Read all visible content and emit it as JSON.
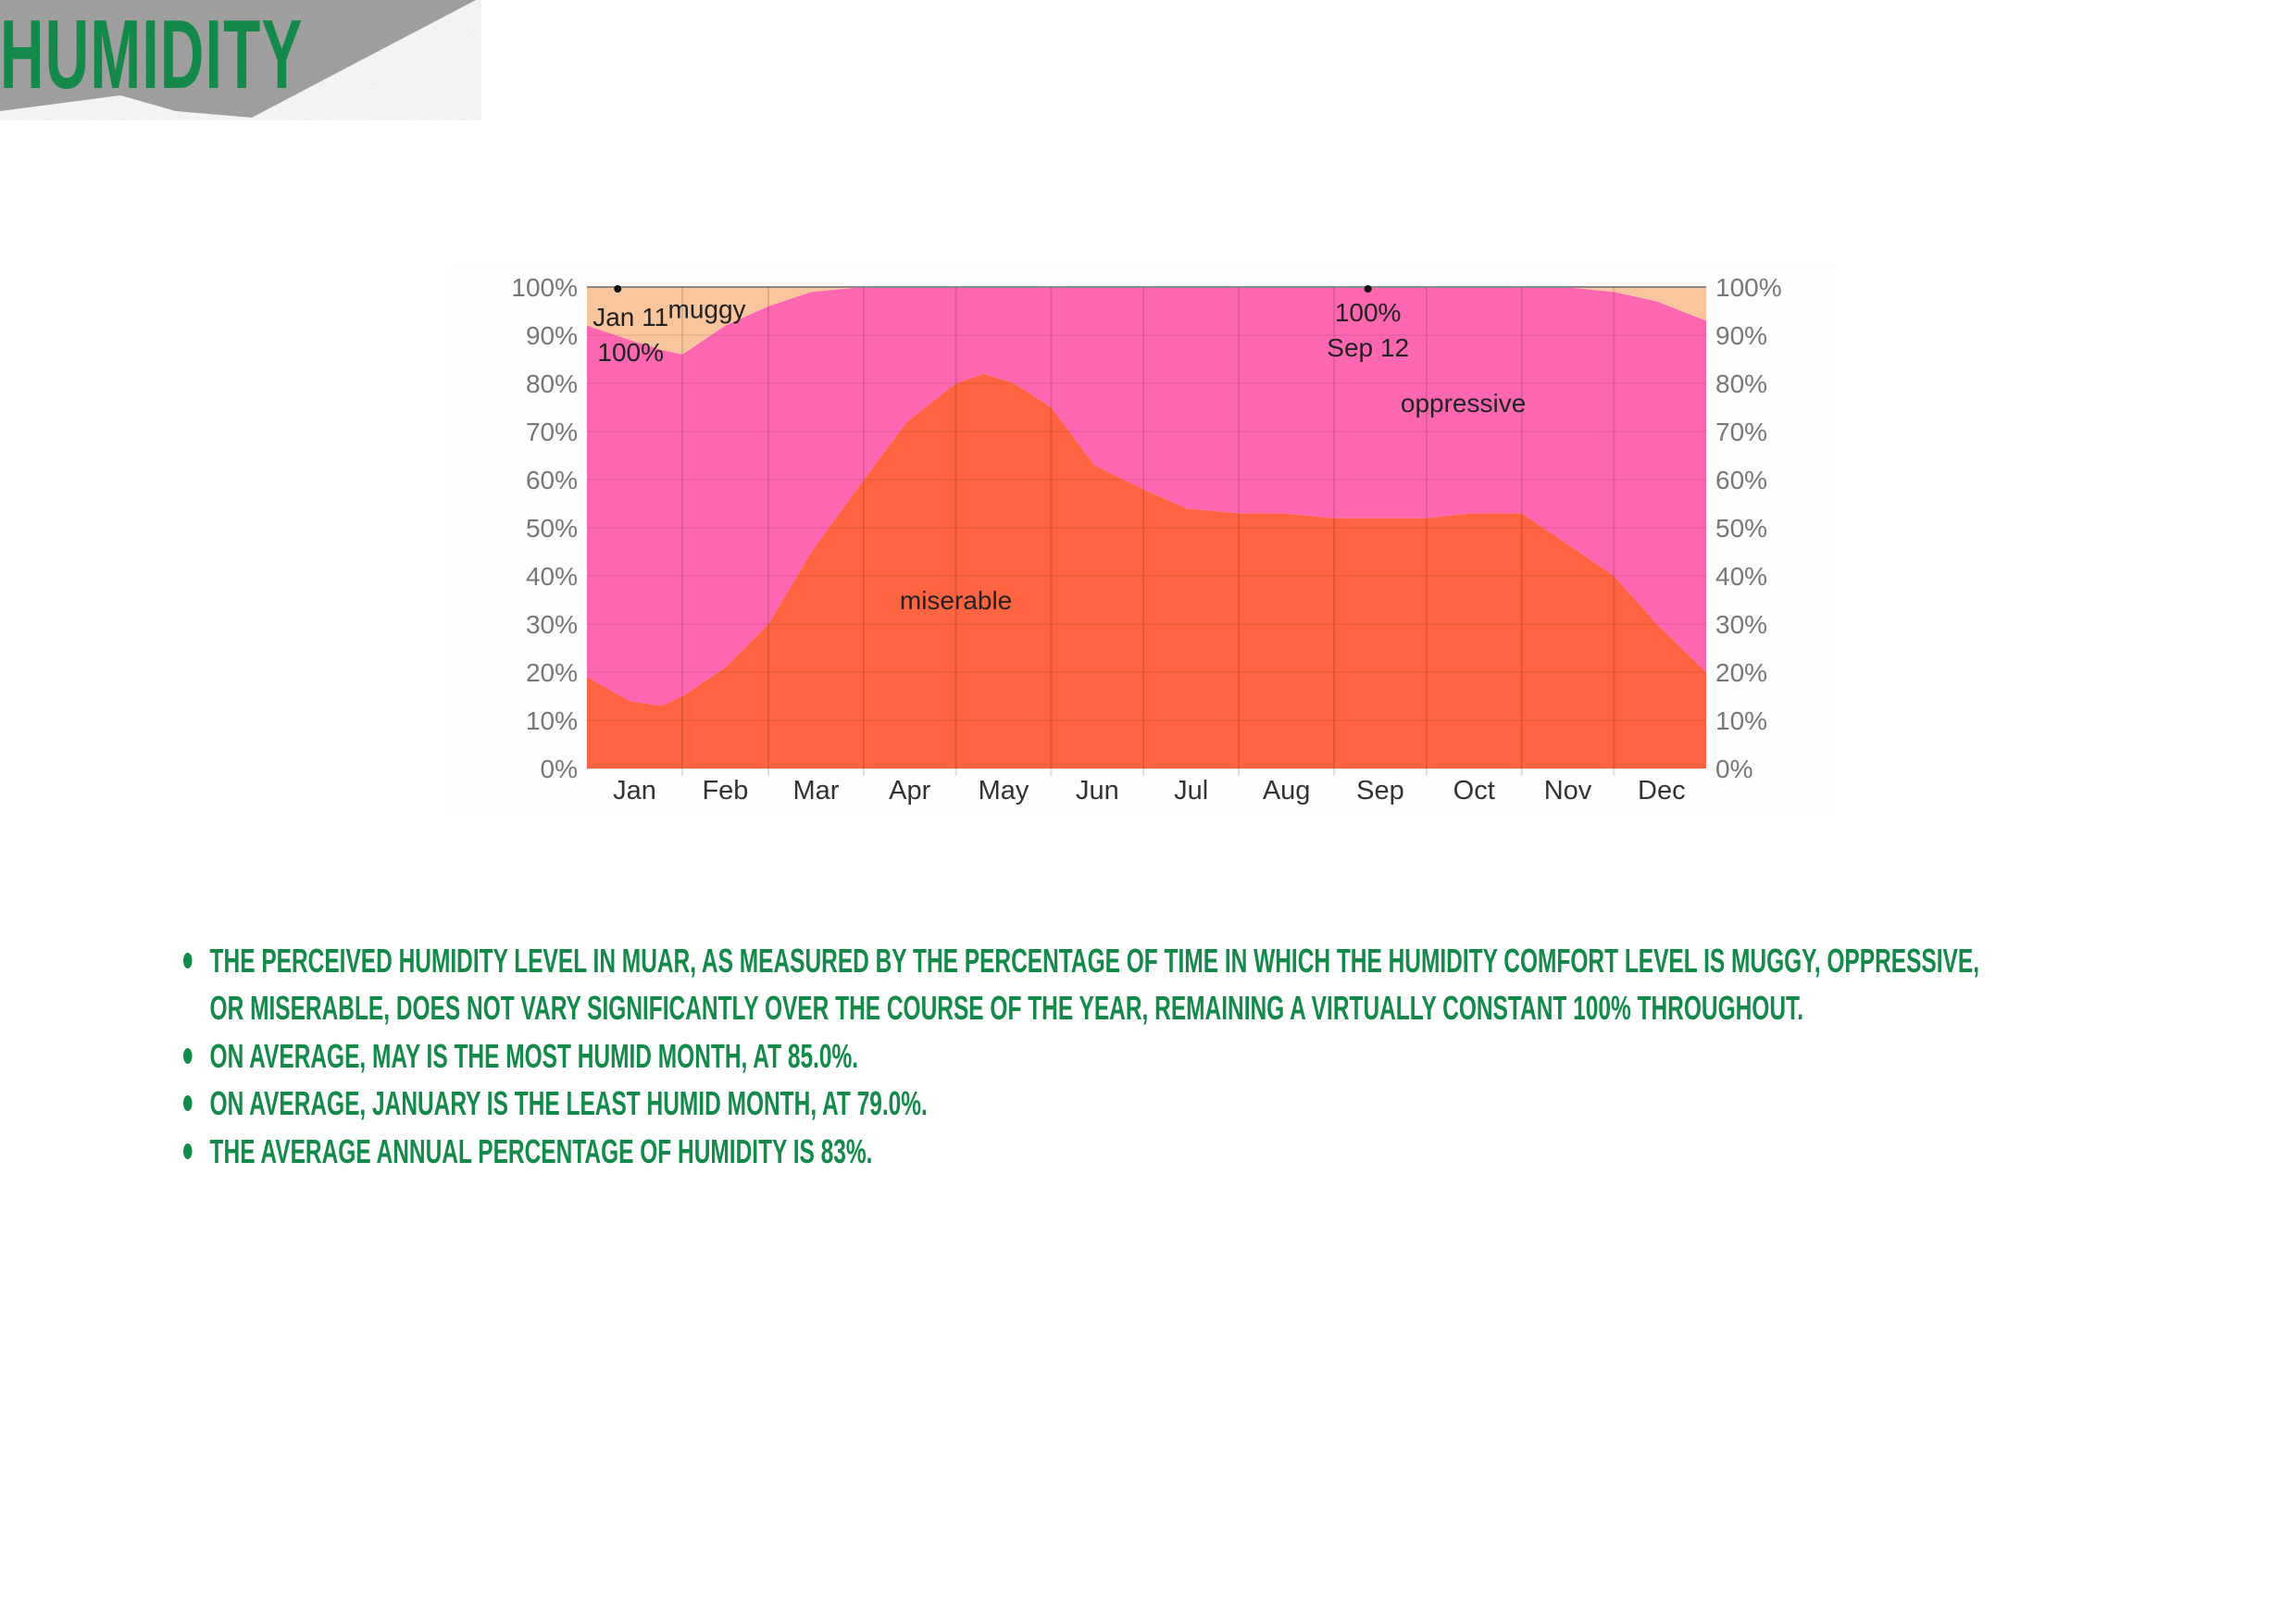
{
  "header": {
    "title": "HUMIDITY"
  },
  "colors": {
    "title": "#13894a",
    "banner": "#a9a9a9",
    "muggy": "#f9c59c",
    "oppressive": "#fd67b2",
    "miserable": "#fe6441"
  },
  "chart_data": {
    "type": "area",
    "stacked": true,
    "xlabel": "",
    "ylabel": "",
    "ylim": [
      0,
      100
    ],
    "y_ticks": [
      "0%",
      "10%",
      "20%",
      "30%",
      "40%",
      "50%",
      "60%",
      "70%",
      "80%",
      "90%",
      "100%"
    ],
    "x_ticks": [
      "Jan",
      "Feb",
      "Mar",
      "Apr",
      "May",
      "Jun",
      "Jul",
      "Aug",
      "Sep",
      "Oct",
      "Nov",
      "Dec"
    ],
    "grid": true,
    "x": [
      "Jan 1",
      "Jan 15",
      "Jan 25",
      "Feb 1",
      "Feb 15",
      "Mar 1",
      "Mar 15",
      "Apr 1",
      "Apr 15",
      "May 1",
      "May 10",
      "May 20",
      "Jun 1",
      "Jun 15",
      "Jul 1",
      "Jul 15",
      "Aug 1",
      "Aug 15",
      "Sep 1",
      "Sep 15",
      "Oct 1",
      "Oct 15",
      "Nov 1",
      "Nov 15",
      "Dec 1",
      "Dec 15",
      "Dec 31"
    ],
    "series": [
      {
        "name": "miserable",
        "values": [
          19,
          14,
          13,
          15,
          21,
          30,
          45,
          60,
          72,
          80,
          82,
          80,
          75,
          63,
          58,
          54,
          53,
          53,
          52,
          52,
          52,
          53,
          53,
          47,
          40,
          30,
          20
        ]
      },
      {
        "name": "oppressive",
        "values": [
          73,
          75,
          74,
          71,
          71,
          66,
          54,
          40,
          28,
          20,
          18,
          20,
          25,
          37,
          42,
          46,
          47,
          47,
          48,
          48,
          48,
          47,
          47,
          53,
          59,
          67,
          73
        ]
      },
      {
        "name": "muggy",
        "values": [
          8,
          11,
          13,
          14,
          8,
          4,
          1,
          0,
          0,
          0,
          0,
          0,
          0,
          0,
          0,
          0,
          0,
          0,
          0,
          0,
          0,
          0,
          0,
          0,
          1,
          3,
          7
        ]
      }
    ],
    "annotations": [
      {
        "date": "Jan 11",
        "value": "100%"
      },
      {
        "date": "Sep 12",
        "value": "100%"
      }
    ]
  },
  "bullets": [
    "The perceived humidity level in Muar, as measured by the percentage of time in which the humidity comfort level is muggy, oppressive, or miserable, does not vary significantly over the course of the year, remaining a virtually constant 100% throughout.",
    "On average, May is the most humid month, at 85.0%.",
    "On average, January is the least humid month, at 79.0%.",
    "The average annual percentage of humidity is 83%."
  ]
}
